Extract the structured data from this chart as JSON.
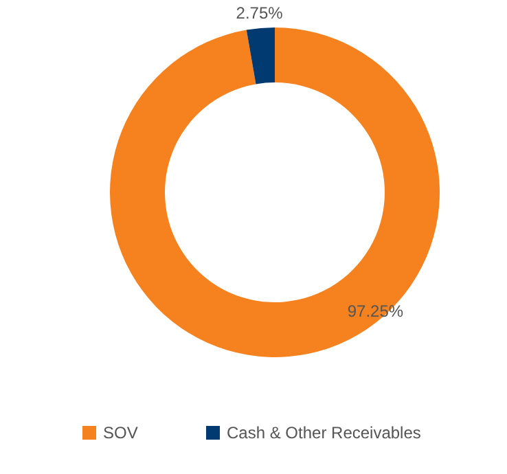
{
  "chart_data": {
    "type": "donut",
    "categories": [
      "SOV",
      "Cash & Other Receivables"
    ],
    "values": [
      97.25,
      2.75
    ],
    "colors": [
      "#f5821f",
      "#003a70"
    ],
    "value_labels": [
      "97.25%",
      "2.75%"
    ],
    "legend": "bottom"
  }
}
